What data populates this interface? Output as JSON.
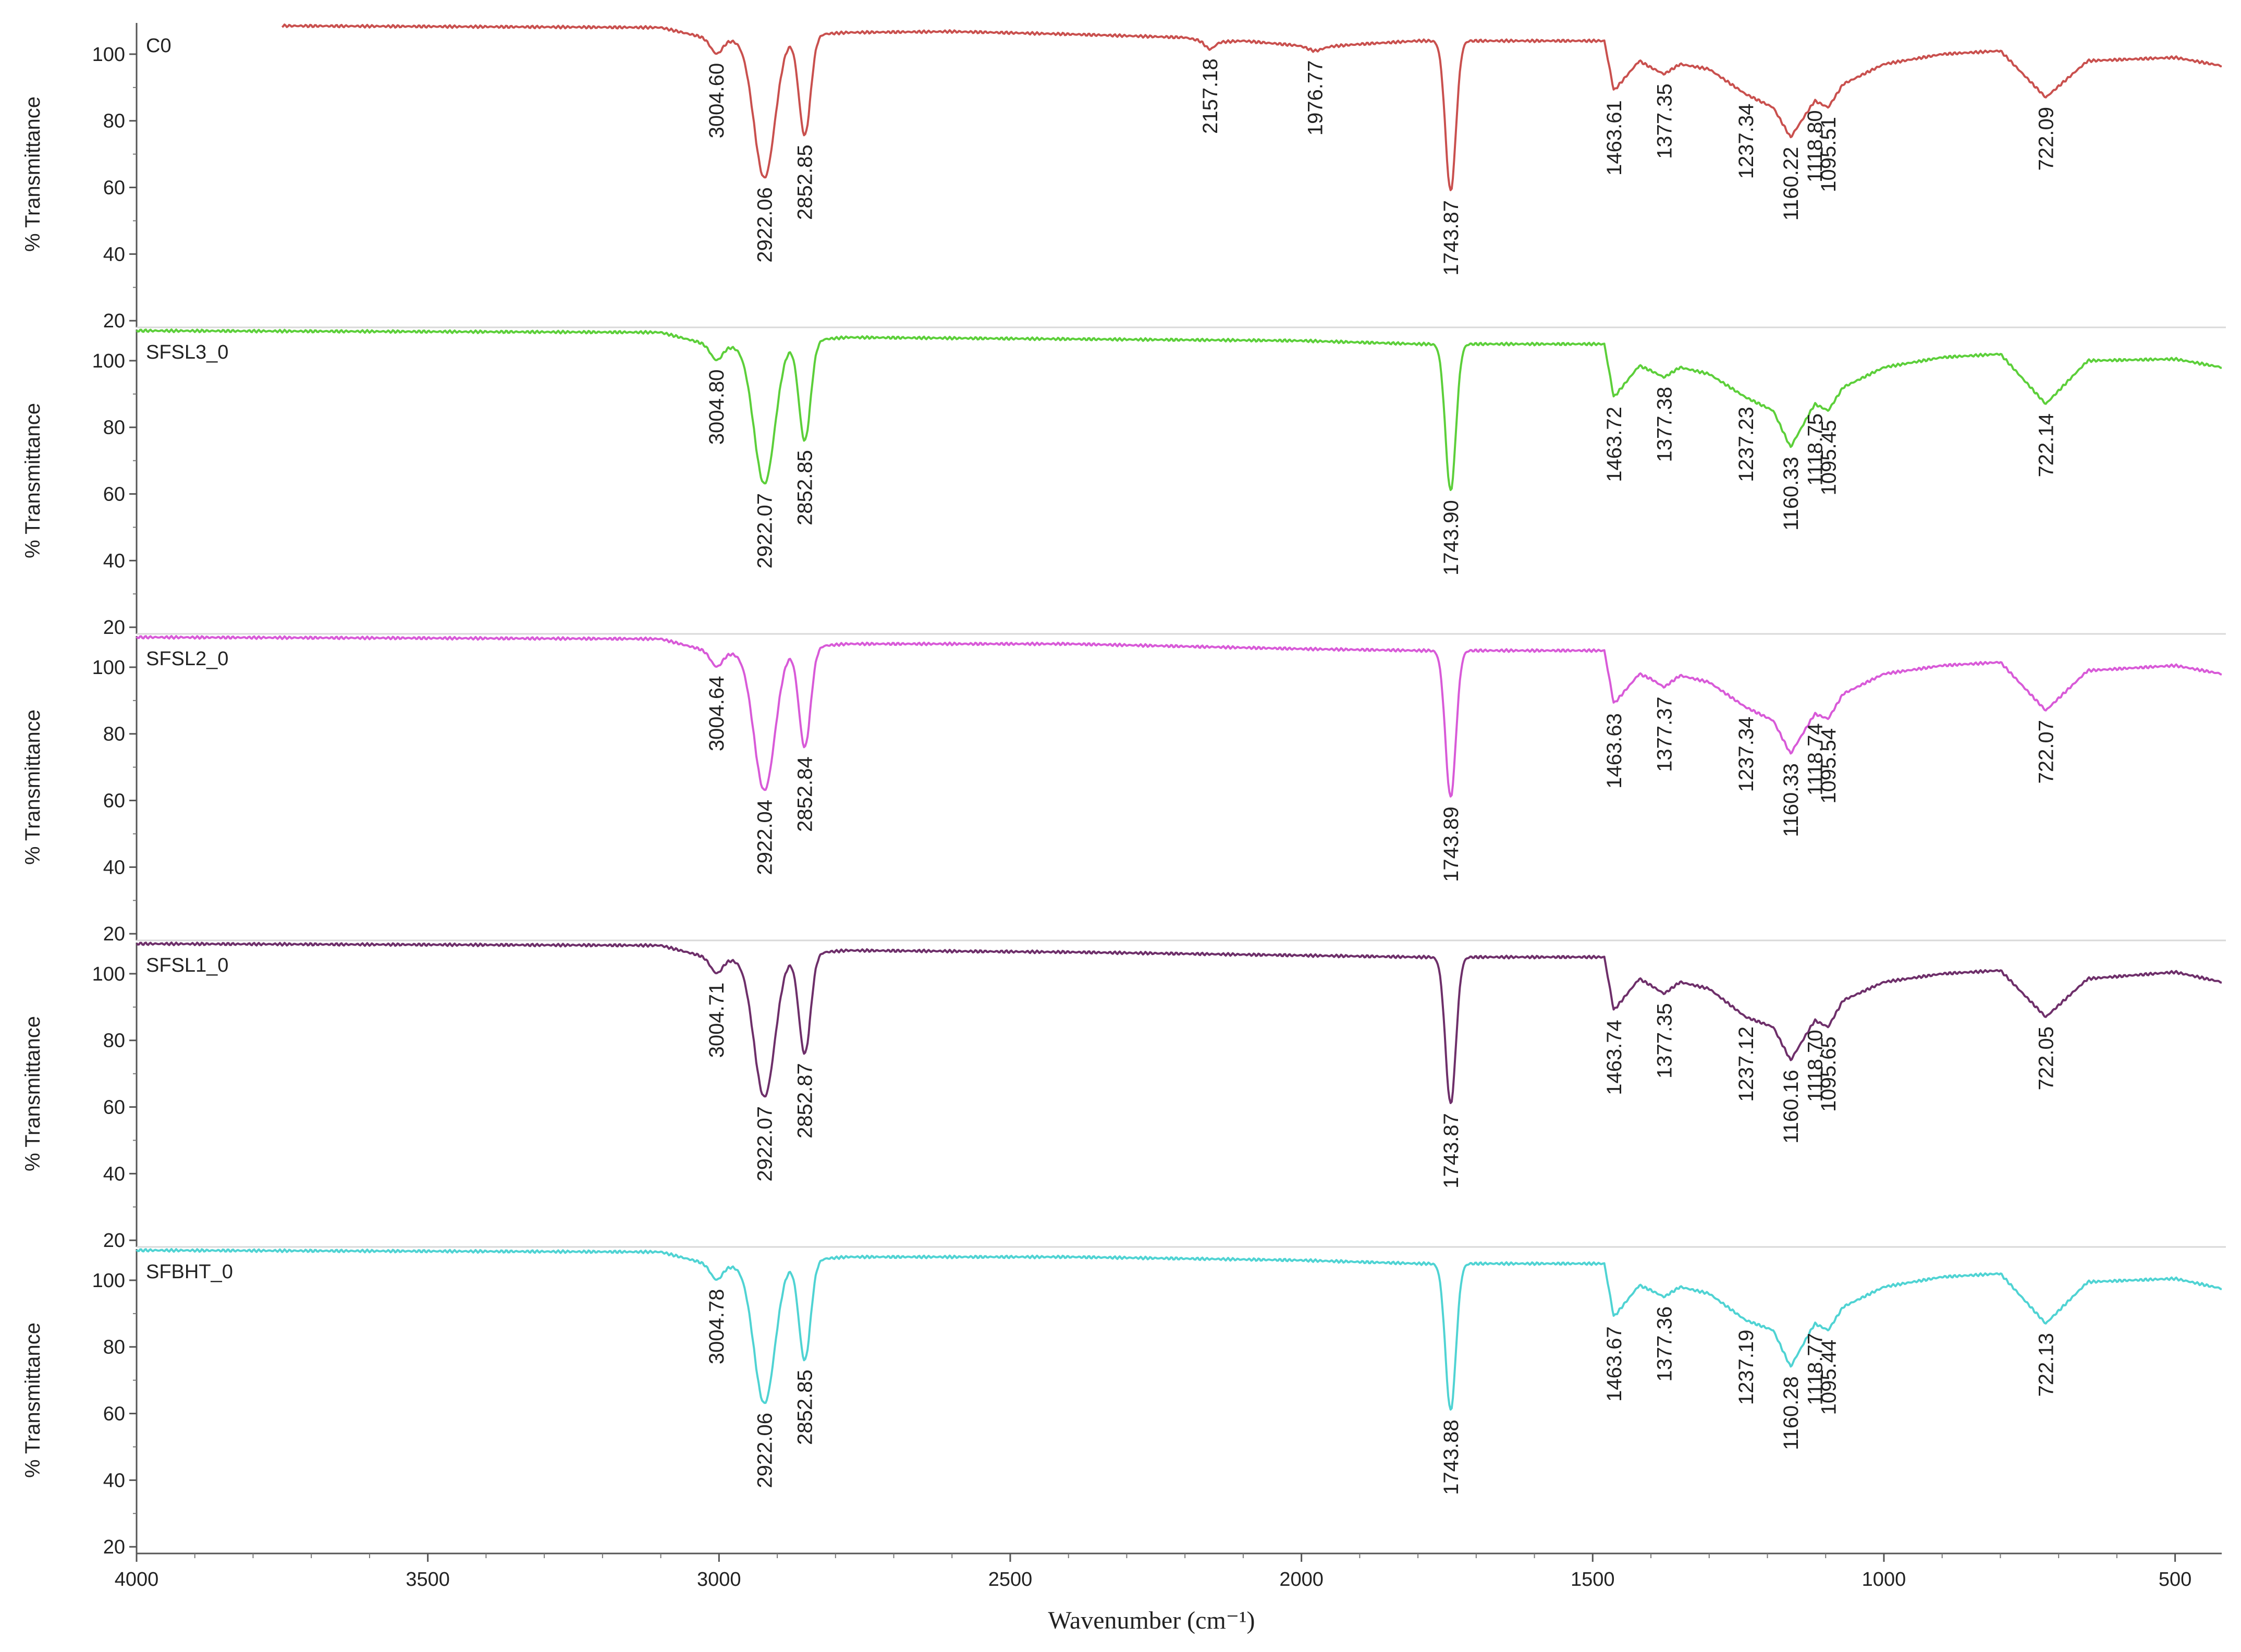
{
  "chart_data": {
    "type": "line",
    "title": "",
    "xlabel": "Wavenumber (cm⁻¹)",
    "ylabel": "% Transmittance",
    "xlim": [
      4000,
      420
    ],
    "ylim": [
      18,
      110
    ],
    "x_ticks": [
      "4000",
      "3500",
      "3000",
      "2500",
      "2000",
      "1500",
      "1000",
      "500"
    ],
    "y_ticks": [
      "20",
      "40",
      "60",
      "80",
      "100"
    ],
    "panels": [
      {
        "name": "C0",
        "color": "#c9504e",
        "start_x": 3750,
        "baseline": [
          [
            3750,
            108.5
          ],
          [
            3100,
            108
          ],
          [
            3000,
            104
          ],
          [
            2780,
            106.5
          ],
          [
            2600,
            106.8
          ],
          [
            2400,
            106
          ],
          [
            2200,
            105
          ],
          [
            2157.18,
            103.5
          ],
          [
            2100,
            104
          ],
          [
            2000,
            102.5
          ],
          [
            1976.77,
            102
          ],
          [
            1900,
            103
          ],
          [
            1800,
            104
          ],
          [
            1480,
            104
          ],
          [
            1463.61,
            89
          ],
          [
            1420,
            98
          ],
          [
            1400,
            96
          ],
          [
            1377.35,
            94
          ],
          [
            1350,
            97
          ],
          [
            1300,
            95.5
          ],
          [
            1237.34,
            88
          ],
          [
            1190,
            84
          ],
          [
            1160.22,
            75
          ],
          [
            1118.8,
            86
          ],
          [
            1095.51,
            84
          ],
          [
            1070,
            91
          ],
          [
            1000,
            97
          ],
          [
            900,
            100
          ],
          [
            800,
            101
          ],
          [
            722.09,
            87
          ],
          [
            650,
            98
          ],
          [
            500,
            99
          ],
          [
            420,
            96.5
          ]
        ],
        "peaks": [
          {
            "x": 3004.6,
            "depth": 4,
            "width": 10,
            "label": "3004.60"
          },
          {
            "x": 2922.06,
            "depth": 42,
            "width": 18,
            "label": "2922.06"
          },
          {
            "x": 2852.85,
            "depth": 30,
            "width": 10,
            "label": "2852.85"
          },
          {
            "x": 2157.18,
            "depth": 2,
            "width": 8,
            "label": "2157.18"
          },
          {
            "x": 1976.77,
            "depth": 1,
            "width": 12,
            "label": "1976.77"
          },
          {
            "x": 1743.87,
            "depth": 45,
            "width": 9,
            "label": "1743.87"
          },
          {
            "x": 1463.61,
            "depth": 0,
            "width": 8,
            "label": "1463.61"
          },
          {
            "x": 1377.35,
            "depth": 0,
            "width": 6,
            "label": "1377.35"
          },
          {
            "x": 1237.34,
            "depth": 0,
            "width": 8,
            "label": "1237.34"
          },
          {
            "x": 1160.22,
            "depth": 0,
            "width": 10,
            "label": "1160.22"
          },
          {
            "x": 1118.8,
            "depth": 0,
            "width": 5,
            "label": "1118.80"
          },
          {
            "x": 1095.51,
            "depth": 0,
            "width": 5,
            "label": "1095.51"
          },
          {
            "x": 722.09,
            "depth": 0,
            "width": 10,
            "label": "722.09"
          }
        ]
      },
      {
        "name": "SFSL3_0",
        "color": "#5ccf3a",
        "start_x": 4000,
        "baseline": [
          [
            4000,
            109
          ],
          [
            3100,
            108.5
          ],
          [
            3000,
            104
          ],
          [
            2780,
            107
          ],
          [
            2400,
            106.5
          ],
          [
            2000,
            106
          ],
          [
            1800,
            105
          ],
          [
            1480,
            105
          ],
          [
            1463.72,
            89
          ],
          [
            1420,
            98.5
          ],
          [
            1400,
            97
          ],
          [
            1377.38,
            95
          ],
          [
            1350,
            98
          ],
          [
            1300,
            96
          ],
          [
            1237.23,
            89
          ],
          [
            1190,
            85
          ],
          [
            1160.33,
            74
          ],
          [
            1118.75,
            87
          ],
          [
            1095.45,
            85
          ],
          [
            1070,
            92
          ],
          [
            1000,
            98
          ],
          [
            900,
            101
          ],
          [
            800,
            102
          ],
          [
            722.14,
            87
          ],
          [
            650,
            100
          ],
          [
            500,
            100.5
          ],
          [
            420,
            98
          ]
        ],
        "peaks": [
          {
            "x": 3004.8,
            "depth": 4,
            "width": 10,
            "label": "3004.80"
          },
          {
            "x": 2922.07,
            "depth": 42,
            "width": 18,
            "label": "2922.07"
          },
          {
            "x": 2852.85,
            "depth": 30,
            "width": 10,
            "label": "2852.85"
          },
          {
            "x": 1743.9,
            "depth": 44,
            "width": 9,
            "label": "1743.90"
          },
          {
            "x": 1463.72,
            "depth": 0,
            "width": 8,
            "label": "1463.72"
          },
          {
            "x": 1377.38,
            "depth": 0,
            "width": 6,
            "label": "1377.38"
          },
          {
            "x": 1237.23,
            "depth": 0,
            "width": 8,
            "label": "1237.23"
          },
          {
            "x": 1160.33,
            "depth": 0,
            "width": 10,
            "label": "1160.33"
          },
          {
            "x": 1118.75,
            "depth": 0,
            "width": 5,
            "label": "1118.75"
          },
          {
            "x": 1095.45,
            "depth": 0,
            "width": 5,
            "label": "1095.45"
          },
          {
            "x": 722.14,
            "depth": 0,
            "width": 10,
            "label": "722.14"
          }
        ]
      },
      {
        "name": "SFSL2_0",
        "color": "#d85ad8",
        "start_x": 4000,
        "baseline": [
          [
            4000,
            109
          ],
          [
            3100,
            108.5
          ],
          [
            3000,
            104
          ],
          [
            2780,
            107
          ],
          [
            2400,
            107
          ],
          [
            2000,
            105.5
          ],
          [
            1800,
            105
          ],
          [
            1480,
            105
          ],
          [
            1463.63,
            89
          ],
          [
            1420,
            98
          ],
          [
            1400,
            96.5
          ],
          [
            1377.37,
            94
          ],
          [
            1350,
            97.5
          ],
          [
            1300,
            95.5
          ],
          [
            1237.34,
            88
          ],
          [
            1190,
            84
          ],
          [
            1160.33,
            74
          ],
          [
            1118.74,
            86
          ],
          [
            1095.54,
            84.5
          ],
          [
            1070,
            92
          ],
          [
            1000,
            98
          ],
          [
            900,
            100.5
          ],
          [
            800,
            101.5
          ],
          [
            722.07,
            87
          ],
          [
            650,
            99
          ],
          [
            500,
            100.5
          ],
          [
            420,
            98
          ]
        ],
        "peaks": [
          {
            "x": 3004.64,
            "depth": 4,
            "width": 10,
            "label": "3004.64"
          },
          {
            "x": 2922.04,
            "depth": 42,
            "width": 18,
            "label": "2922.04"
          },
          {
            "x": 2852.84,
            "depth": 30,
            "width": 10,
            "label": "2852.84"
          },
          {
            "x": 1743.89,
            "depth": 44,
            "width": 9,
            "label": "1743.89"
          },
          {
            "x": 1463.63,
            "depth": 0,
            "width": 8,
            "label": "1463.63"
          },
          {
            "x": 1377.37,
            "depth": 0,
            "width": 6,
            "label": "1377.37"
          },
          {
            "x": 1237.34,
            "depth": 0,
            "width": 8,
            "label": "1237.34"
          },
          {
            "x": 1160.33,
            "depth": 0,
            "width": 10,
            "label": "1160.33"
          },
          {
            "x": 1118.74,
            "depth": 0,
            "width": 5,
            "label": "1118.74"
          },
          {
            "x": 1095.54,
            "depth": 0,
            "width": 5,
            "label": "1095.54"
          },
          {
            "x": 722.07,
            "depth": 0,
            "width": 10,
            "label": "722.07"
          }
        ]
      },
      {
        "name": "SFSL1_0",
        "color": "#6e2f6a",
        "start_x": 4000,
        "baseline": [
          [
            4000,
            109
          ],
          [
            3100,
            108.5
          ],
          [
            3000,
            104
          ],
          [
            2780,
            107
          ],
          [
            2400,
            106.5
          ],
          [
            2000,
            105.5
          ],
          [
            1800,
            105
          ],
          [
            1480,
            105
          ],
          [
            1463.74,
            89
          ],
          [
            1420,
            98.5
          ],
          [
            1400,
            96.5
          ],
          [
            1377.35,
            94
          ],
          [
            1350,
            97.5
          ],
          [
            1300,
            95.5
          ],
          [
            1237.12,
            87
          ],
          [
            1190,
            84
          ],
          [
            1160.16,
            74
          ],
          [
            1118.7,
            86
          ],
          [
            1095.65,
            84
          ],
          [
            1070,
            92
          ],
          [
            1000,
            97.5
          ],
          [
            900,
            100
          ],
          [
            800,
            101
          ],
          [
            722.05,
            87
          ],
          [
            650,
            98.5
          ],
          [
            500,
            100.5
          ],
          [
            420,
            97.5
          ]
        ],
        "peaks": [
          {
            "x": 3004.71,
            "depth": 4,
            "width": 10,
            "label": "3004.71"
          },
          {
            "x": 2922.07,
            "depth": 42,
            "width": 18,
            "label": "2922.07"
          },
          {
            "x": 2852.87,
            "depth": 30,
            "width": 10,
            "label": "2852.87"
          },
          {
            "x": 1743.87,
            "depth": 44,
            "width": 9,
            "label": "1743.87"
          },
          {
            "x": 1463.74,
            "depth": 0,
            "width": 8,
            "label": "1463.74"
          },
          {
            "x": 1377.35,
            "depth": 0,
            "width": 6,
            "label": "1377.35"
          },
          {
            "x": 1237.12,
            "depth": 0,
            "width": 8,
            "label": "1237.12"
          },
          {
            "x": 1160.16,
            "depth": 0,
            "width": 10,
            "label": "1160.16"
          },
          {
            "x": 1118.7,
            "depth": 0,
            "width": 5,
            "label": "1118.70"
          },
          {
            "x": 1095.65,
            "depth": 0,
            "width": 5,
            "label": "1095.65"
          },
          {
            "x": 722.05,
            "depth": 0,
            "width": 10,
            "label": "722.05"
          }
        ]
      },
      {
        "name": "SFBHT_0",
        "color": "#4fd3d3",
        "start_x": 4000,
        "baseline": [
          [
            4000,
            109
          ],
          [
            3100,
            108.5
          ],
          [
            3000,
            104
          ],
          [
            2780,
            107
          ],
          [
            2400,
            107
          ],
          [
            2000,
            106
          ],
          [
            1800,
            105
          ],
          [
            1480,
            105
          ],
          [
            1463.67,
            89
          ],
          [
            1420,
            98.5
          ],
          [
            1400,
            97
          ],
          [
            1377.36,
            95
          ],
          [
            1350,
            98
          ],
          [
            1300,
            96
          ],
          [
            1237.19,
            88
          ],
          [
            1190,
            85
          ],
          [
            1160.28,
            74
          ],
          [
            1118.77,
            87
          ],
          [
            1095.44,
            85
          ],
          [
            1070,
            92
          ],
          [
            1000,
            98
          ],
          [
            900,
            101
          ],
          [
            800,
            102
          ],
          [
            722.13,
            87
          ],
          [
            650,
            99.5
          ],
          [
            500,
            100.5
          ],
          [
            420,
            97.5
          ]
        ],
        "peaks": [
          {
            "x": 3004.78,
            "depth": 4,
            "width": 10,
            "label": "3004.78"
          },
          {
            "x": 2922.06,
            "depth": 42,
            "width": 18,
            "label": "2922.06"
          },
          {
            "x": 2852.85,
            "depth": 30,
            "width": 10,
            "label": "2852.85"
          },
          {
            "x": 1743.88,
            "depth": 44,
            "width": 9,
            "label": "1743.88"
          },
          {
            "x": 1463.67,
            "depth": 0,
            "width": 8,
            "label": "1463.67"
          },
          {
            "x": 1377.36,
            "depth": 0,
            "width": 6,
            "label": "1377.36"
          },
          {
            "x": 1237.19,
            "depth": 0,
            "width": 8,
            "label": "1237.19"
          },
          {
            "x": 1160.28,
            "depth": 0,
            "width": 10,
            "label": "1160.28"
          },
          {
            "x": 1118.77,
            "depth": 0,
            "width": 5,
            "label": "1118.77"
          },
          {
            "x": 1095.44,
            "depth": 0,
            "width": 5,
            "label": "1095.44"
          },
          {
            "x": 722.13,
            "depth": 0,
            "width": 10,
            "label": "722.13"
          }
        ]
      }
    ]
  }
}
